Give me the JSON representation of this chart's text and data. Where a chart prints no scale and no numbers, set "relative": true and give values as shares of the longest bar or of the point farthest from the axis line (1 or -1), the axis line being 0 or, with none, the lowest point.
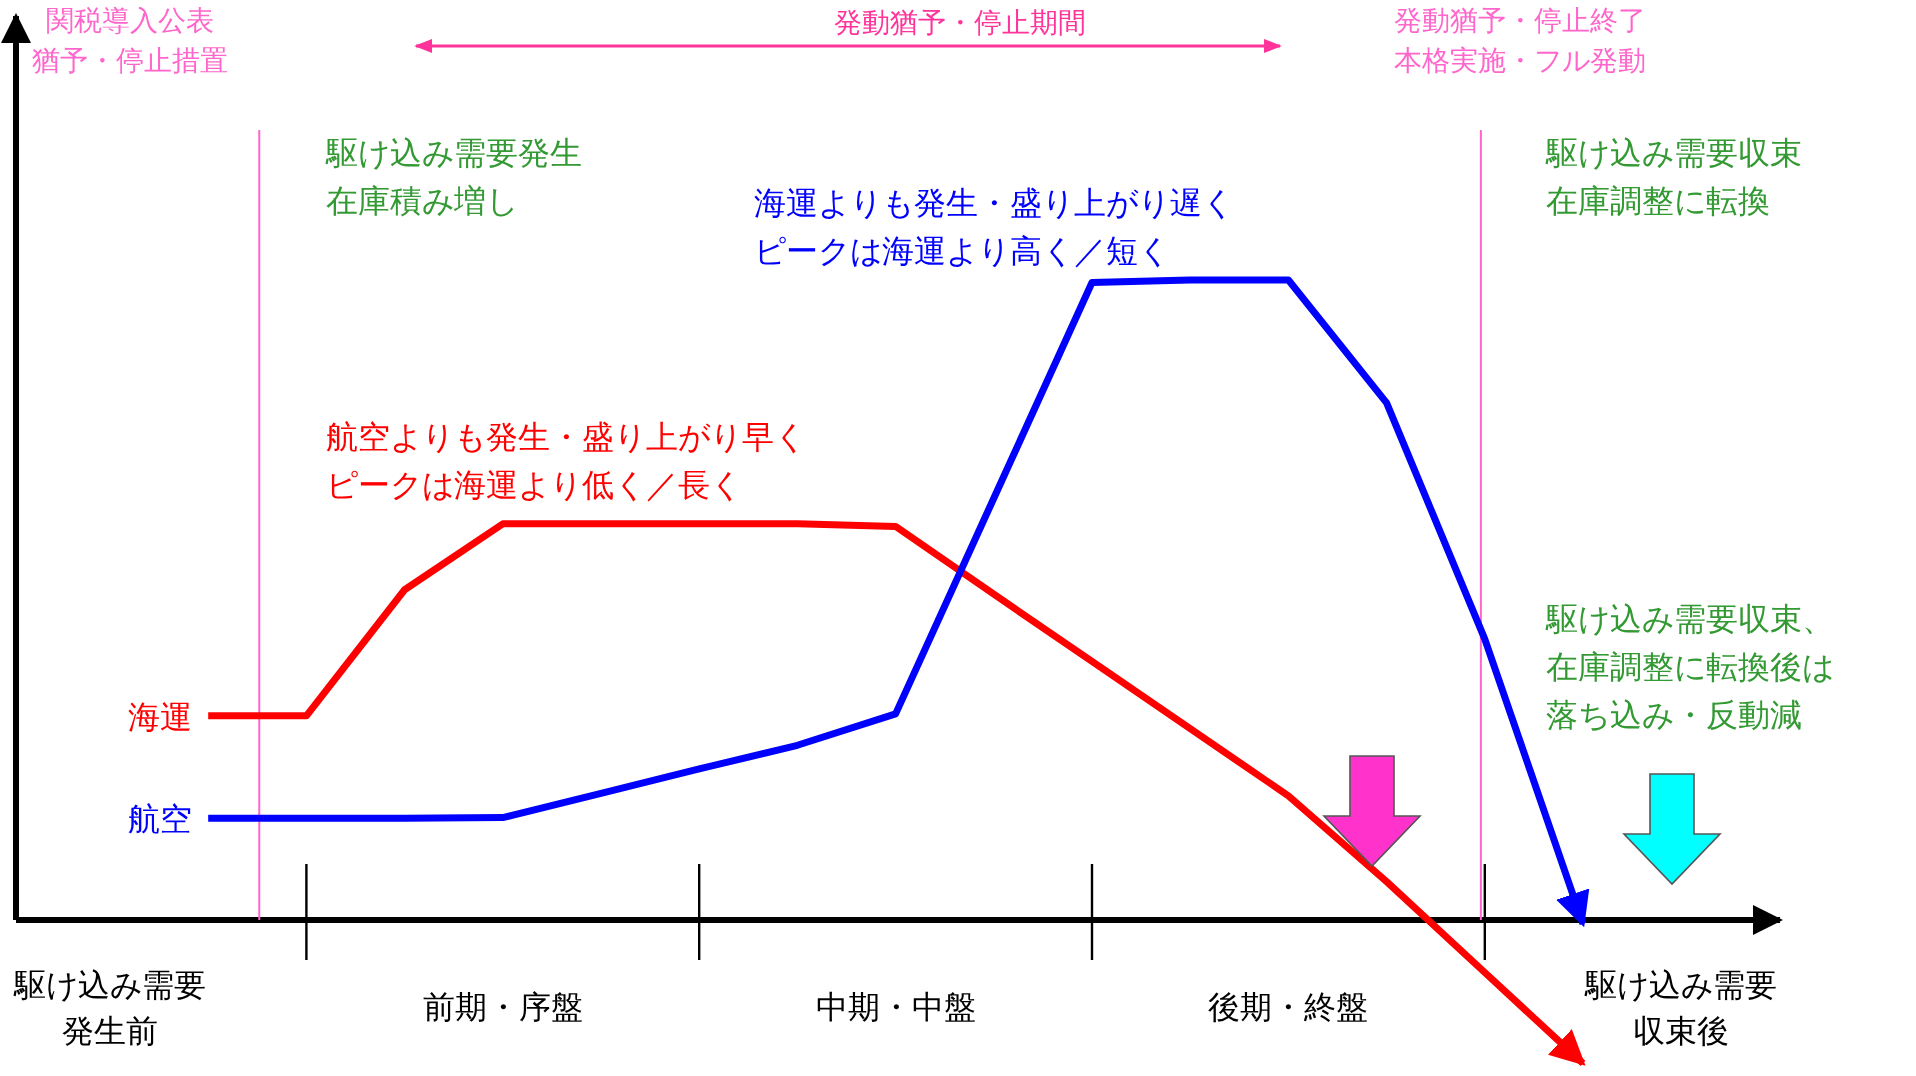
{
  "chart_data": {
    "type": "line",
    "relative": true,
    "line_style": "solid",
    "categories": [
      "駆け込み需要発生前",
      null,
      null,
      null,
      "前期・序盤",
      null,
      null,
      null,
      "中期・中盤",
      null,
      null,
      null,
      "後期・終盤",
      null,
      null,
      null,
      "駆け込み需要収束後"
    ],
    "series": [
      {
        "name": "海運",
        "color": "#ff0000",
        "values": [
          null,
          0.319,
          0.319,
          0.516,
          0.619,
          0.619,
          0.619,
          0.619,
          0.615,
          0.509,
          0.404,
          0.299,
          0.194,
          0.06,
          -0.082,
          -0.224,
          null
        ]
      },
      {
        "name": "航空",
        "color": "#0000ff",
        "values": [
          null,
          0.159,
          0.159,
          0.159,
          0.16,
          0.198,
          0.236,
          0.273,
          0.322,
          0.659,
          0.996,
          1,
          1,
          0.808,
          0.439,
          -0.006,
          null
        ]
      }
    ],
    "annotations": [
      "関税導入公表猶予・停止措置",
      "発動猶予・停止期間",
      "発動猶予・停止終了本格実施・フル発動",
      "駆け込み需要発生在庫積み増し",
      "海運よりも発生・盛り上がり遅くピークは海運より高く／短く",
      "航空よりも発生・盛り上がり早くピークは海運より低く／長く",
      "駆け込み需要収束在庫調整に転換",
      "駆け込み需要収束、在庫調整に転換後は落ち込み・反動減"
    ]
  }
}
